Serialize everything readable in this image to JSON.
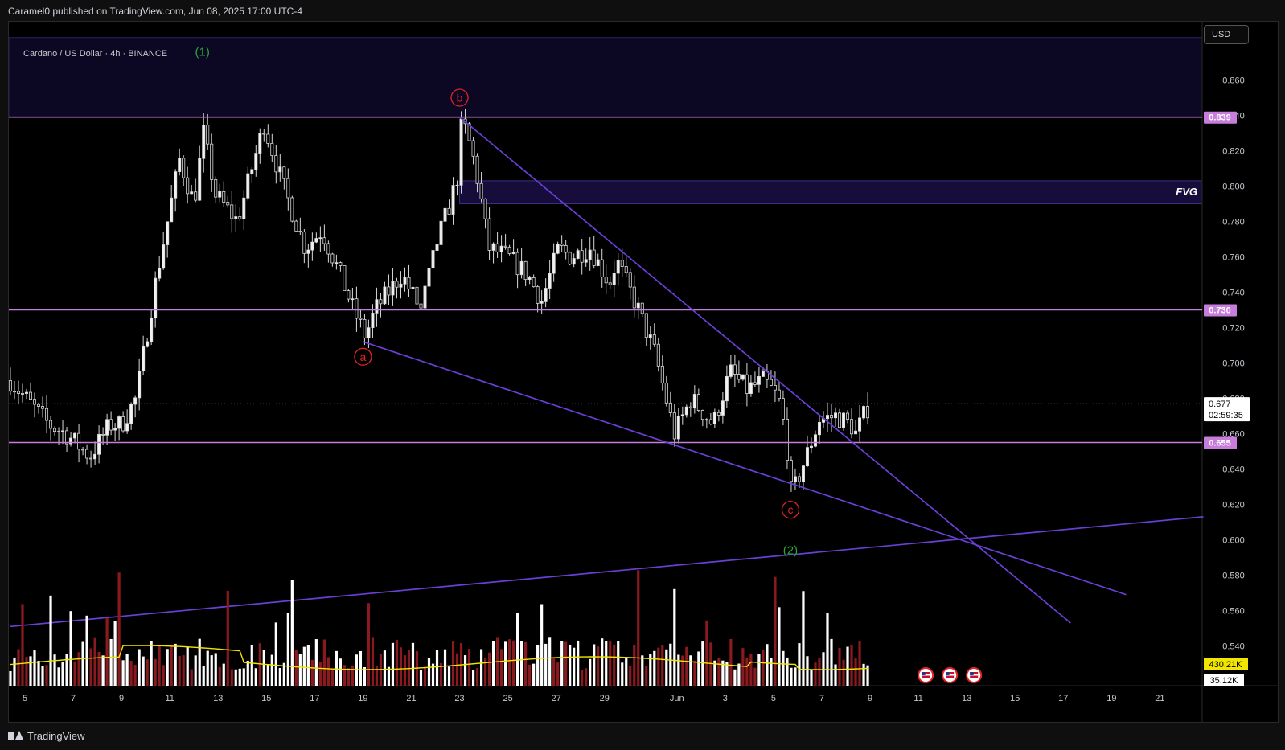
{
  "publish_line": "Caramel0 published on TradingView.com, Jun 08, 2025 17:00 UTC-4",
  "symbol_line": "Cardano / US Dollar · 4h · BINANCE",
  "currency_button": "USD",
  "footer_brand": "TradingView",
  "colors": {
    "background": "#000000",
    "candle": "#d9d9d9",
    "level_line": "#c77ddb",
    "trend_line": "#6a3fd6",
    "volume_up": "#ffffff",
    "volume_down": "#8b1a1f",
    "volume_ma": "#f2e600",
    "wave_green": "#26a63a",
    "wave_red": "#e02424",
    "fvg_box": "#160d3a"
  },
  "chart_data": {
    "type": "candlestick",
    "timeframe": "4h",
    "y_axis": {
      "ticks": [
        0.86,
        0.84,
        0.82,
        0.8,
        0.78,
        0.76,
        0.74,
        0.72,
        0.7,
        0.68,
        0.66,
        0.64,
        0.62,
        0.6,
        0.58,
        0.56,
        0.54
      ],
      "tick_labels": [
        "0.860",
        "0.840",
        "0.820",
        "0.800",
        "0.780",
        "0.760",
        "0.740",
        "0.720",
        "0.700",
        "0.680",
        "0.660",
        "0.640",
        "0.620",
        "0.600",
        "0.580",
        "0.560",
        "0.540"
      ]
    },
    "x_axis": {
      "tick_labels": [
        "5",
        "7",
        "9",
        "11",
        "13",
        "15",
        "17",
        "19",
        "21",
        "23",
        "25",
        "27",
        "29",
        "Jun",
        "3",
        "5",
        "7",
        "9",
        "11",
        "13",
        "15",
        "17",
        "19",
        "21"
      ],
      "day_index": [
        0,
        2,
        4,
        6,
        8,
        10,
        12,
        14,
        16,
        18,
        20,
        22,
        24,
        27,
        29,
        31,
        33,
        35,
        37,
        39,
        41,
        43,
        45,
        47
      ]
    },
    "horizontal_levels": [
      {
        "price": 0.839,
        "label": "0.839"
      },
      {
        "price": 0.73,
        "label": "0.730"
      },
      {
        "price": 0.655,
        "label": "0.655"
      }
    ],
    "price_marker": {
      "price": 0.677,
      "label": "0.677",
      "countdown": "02:59:35"
    },
    "fvg_zone": {
      "label": "FVG",
      "start_day": 18.0,
      "top": 0.803,
      "bottom": 0.79
    },
    "upper_supply_zone": {
      "top": 0.884,
      "bottom": 0.839
    },
    "trend_lines": [
      {
        "from": {
          "day": 18.0,
          "price": 0.839
        },
        "to": {
          "day": 43.3,
          "price": 0.553
        }
      },
      {
        "from": {
          "day": 14.0,
          "price": 0.712
        },
        "to": {
          "day": 45.6,
          "price": 0.569
        }
      },
      {
        "from": {
          "day": -0.6,
          "price": 0.551
        },
        "to": {
          "day": 48.8,
          "price": 0.613
        }
      }
    ],
    "wave_labels": [
      {
        "text": "(1)",
        "day": 7.35,
        "price": 0.876,
        "style": "green"
      },
      {
        "text": "b",
        "day": 18.0,
        "price": 0.85,
        "style": "red-circle"
      },
      {
        "text": "a",
        "day": 14.0,
        "price": 0.7035,
        "style": "red-circle"
      },
      {
        "text": "c",
        "day": 31.7,
        "price": 0.617,
        "style": "red-circle"
      },
      {
        "text": "(2)",
        "day": 31.7,
        "price": 0.594,
        "style": "green"
      }
    ],
    "candle_anchors": {
      "day": [
        -0.6,
        1.0,
        1.7,
        2.7,
        3.5,
        4.0,
        4.6,
        5.4,
        6.4,
        7.0,
        7.4,
        7.9,
        8.8,
        9.9,
        10.7,
        11.6,
        12.3,
        12.9,
        13.6,
        14.1,
        14.5,
        15.6,
        16.4,
        17.1,
        17.6,
        17.9,
        18.1,
        18.5,
        18.8,
        19.2,
        20.0,
        20.8,
        21.4,
        22.1,
        22.6,
        23.4,
        24.2,
        24.5,
        25.4,
        26.1,
        26.9,
        27.6,
        28.5,
        29.2,
        29.9,
        30.6,
        31.2,
        31.5,
        31.75,
        32.3,
        32.9,
        33.6,
        34.2,
        34.4,
        34.8,
        35.0
      ],
      "price": [
        0.69,
        0.665,
        0.66,
        0.647,
        0.665,
        0.665,
        0.68,
        0.745,
        0.815,
        0.79,
        0.83,
        0.795,
        0.78,
        0.835,
        0.8,
        0.765,
        0.775,
        0.755,
        0.73,
        0.715,
        0.73,
        0.75,
        0.73,
        0.77,
        0.79,
        0.805,
        0.838,
        0.82,
        0.8,
        0.765,
        0.76,
        0.75,
        0.735,
        0.765,
        0.76,
        0.765,
        0.745,
        0.758,
        0.73,
        0.705,
        0.66,
        0.68,
        0.665,
        0.695,
        0.685,
        0.69,
        0.68,
        0.66,
        0.625,
        0.645,
        0.668,
        0.67,
        0.665,
        0.66,
        0.672,
        0.677
      ]
    },
    "volume": {
      "ma_label": "430.21K",
      "last_label": "35.12K"
    },
    "event_icons": {
      "days": [
        37.3,
        38.3,
        39.3
      ],
      "name": "us-flag-icon"
    }
  }
}
